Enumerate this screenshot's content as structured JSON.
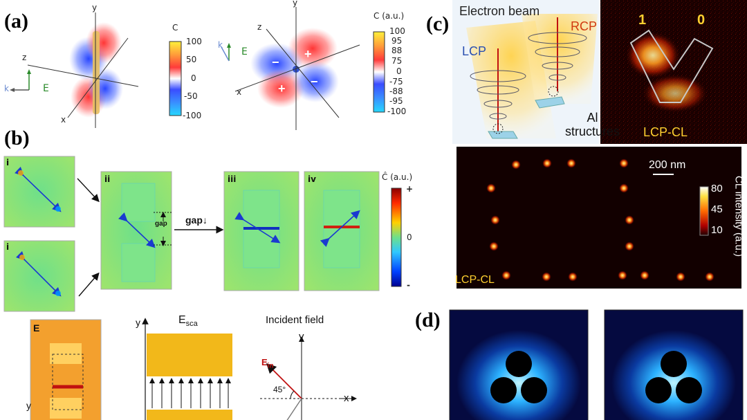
{
  "labels": {
    "a": "(a)",
    "b": "(b)",
    "c": "(c)",
    "d": "(d)"
  },
  "panel_a": {
    "axes1": {
      "x": "x",
      "y": "y",
      "z": "z"
    },
    "axes2": {
      "x": "x",
      "y": "y",
      "z": "z"
    },
    "k1": "k",
    "e1": "E",
    "k2": "k",
    "e2": "E",
    "cbar1_title": "C",
    "cbar1_ticks": [
      "100",
      "50",
      "0",
      "-50",
      "-100"
    ],
    "cbar2_title": "C (a.u.)",
    "cbar2_ticks": [
      "100",
      "95",
      "88",
      "75",
      "0",
      "-75",
      "-88",
      "-95",
      "-100"
    ],
    "signs": [
      "+",
      "−",
      "+",
      "−"
    ]
  },
  "panel_b": {
    "roman": [
      "i",
      "i",
      "ii",
      "iii",
      "iv"
    ],
    "gap_label": "gap",
    "gap_arrow_label": "gap",
    "cbar_title": "Ĉ (a.u.)",
    "cbar_ticks": [
      "+",
      "0",
      "-"
    ],
    "e_label": "E",
    "esca_y": "y",
    "esca_title": "E",
    "esca_sub": "sca",
    "incident_title": "Incident field",
    "inc_y": "y",
    "inc_x": "x",
    "ein": "E",
    "ein_sub": "in",
    "angle": "45°",
    "bottom_y": "y"
  },
  "panel_c": {
    "electron_beam": "Electron beam",
    "lcp": "LCP",
    "rcp": "RCP",
    "al_line1": "Al",
    "al_line2": "structures",
    "num1": "1",
    "num0": "0",
    "lcp_cl_top": "LCP-CL",
    "scale": "200 nm",
    "cl_intensity": "CL intensity (a.u.)",
    "cl_ticks": [
      "80",
      "45",
      "10"
    ],
    "lcp_cl_bottom": "LCP-CL"
  }
}
